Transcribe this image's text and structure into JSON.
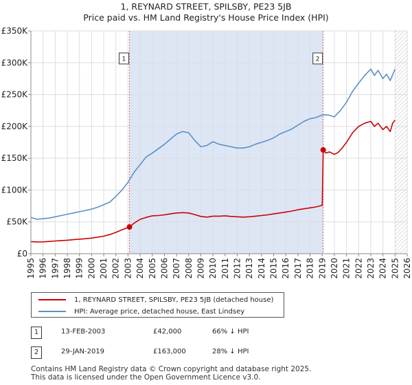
{
  "chart_data": {
    "type": "line",
    "title": "1, REYNARD STREET, SPILSBY, PE23 5JB",
    "subtitle": "Price paid vs. HM Land Registry's House Price Index (HPI)",
    "xlabel": "",
    "ylabel": "",
    "xlim": [
      1995,
      2026
    ],
    "ylim": [
      0,
      350000
    ],
    "x_ticks": [
      "1995",
      "1996",
      "1997",
      "1998",
      "1999",
      "2000",
      "2001",
      "2002",
      "2003",
      "2004",
      "2005",
      "2006",
      "2007",
      "2008",
      "2009",
      "2010",
      "2011",
      "2012",
      "2013",
      "2014",
      "2015",
      "2016",
      "2017",
      "2018",
      "2019",
      "2020",
      "2021",
      "2022",
      "2023",
      "2024",
      "2025",
      "2026"
    ],
    "y_ticks": [
      {
        "value": 0,
        "label": "£0"
      },
      {
        "value": 50000,
        "label": "£50K"
      },
      {
        "value": 100000,
        "label": "£100K"
      },
      {
        "value": 150000,
        "label": "£150K"
      },
      {
        "value": 200000,
        "label": "£200K"
      },
      {
        "value": 250000,
        "label": "£250K"
      },
      {
        "value": 300000,
        "label": "£300K"
      },
      {
        "value": 350000,
        "label": "£350K"
      }
    ],
    "grid": true,
    "shaded_period": [
      2003.12,
      2019.08
    ],
    "future_hatch_from": 2025.0,
    "colors": {
      "property": "#cc0000",
      "hpi": "#5b8fc7",
      "shade": "#dde6f5",
      "grid": "#dddddd",
      "vline": "#e06060"
    },
    "series": [
      {
        "name": "1, REYNARD STREET, SPILSBY, PE23 5JB (detached house)",
        "color": "#cc0000",
        "x": [
          1995.0,
          1995.5,
          1996.0,
          1996.5,
          1997.0,
          1997.5,
          1998.0,
          1998.5,
          1999.0,
          1999.5,
          2000.0,
          2000.5,
          2001.0,
          2001.5,
          2002.0,
          2002.5,
          2003.12,
          2003.5,
          2004.0,
          2004.5,
          2005.0,
          2005.5,
          2006.0,
          2006.5,
          2007.0,
          2007.5,
          2008.0,
          2008.5,
          2009.0,
          2009.5,
          2010.0,
          2010.5,
          2011.0,
          2011.5,
          2012.0,
          2012.5,
          2013.0,
          2013.5,
          2014.0,
          2014.5,
          2015.0,
          2015.5,
          2016.0,
          2016.5,
          2017.0,
          2017.5,
          2018.0,
          2018.5,
          2019.0,
          2019.08,
          2019.3,
          2019.6,
          2020.0,
          2020.3,
          2020.6,
          2021.0,
          2021.5,
          2022.0,
          2022.5,
          2023.0,
          2023.3,
          2023.6,
          2024.0,
          2024.3,
          2024.6,
          2024.8,
          2025.0
        ],
        "values": [
          19000,
          18500,
          18600,
          19200,
          20000,
          20600,
          21200,
          22000,
          22800,
          23500,
          24500,
          26000,
          27500,
          30000,
          33500,
          37500,
          42000,
          48000,
          54000,
          57000,
          59500,
          60000,
          61000,
          62500,
          64000,
          64500,
          64000,
          61500,
          58500,
          57500,
          59000,
          59000,
          59500,
          58500,
          58000,
          57500,
          58000,
          59000,
          60000,
          61000,
          62500,
          64000,
          65500,
          67000,
          69000,
          70500,
          72000,
          73500,
          76000,
          163000,
          158000,
          160000,
          156000,
          159000,
          165000,
          175000,
          190000,
          200000,
          205000,
          208000,
          200000,
          205000,
          195000,
          200000,
          192000,
          205000,
          210000
        ]
      },
      {
        "name": "HPI: Average price, detached house, East Lindsey",
        "color": "#5b8fc7",
        "x": [
          1995.0,
          1995.5,
          1996.0,
          1996.5,
          1997.0,
          1997.5,
          1998.0,
          1998.5,
          1999.0,
          1999.5,
          2000.0,
          2000.5,
          2001.0,
          2001.5,
          2002.0,
          2002.5,
          2003.0,
          2003.5,
          2004.0,
          2004.5,
          2005.0,
          2005.5,
          2006.0,
          2006.5,
          2007.0,
          2007.5,
          2008.0,
          2008.5,
          2009.0,
          2009.5,
          2010.0,
          2010.5,
          2011.0,
          2011.5,
          2012.0,
          2012.5,
          2013.0,
          2013.5,
          2014.0,
          2014.5,
          2015.0,
          2015.5,
          2016.0,
          2016.5,
          2017.0,
          2017.5,
          2018.0,
          2018.5,
          2019.0,
          2019.5,
          2020.0,
          2020.5,
          2021.0,
          2021.5,
          2022.0,
          2022.5,
          2023.0,
          2023.3,
          2023.6,
          2024.0,
          2024.3,
          2024.6,
          2025.0
        ],
        "values": [
          57000,
          54000,
          55000,
          56000,
          58000,
          60000,
          62000,
          64000,
          66000,
          68000,
          70000,
          73000,
          77000,
          81000,
          90000,
          100000,
          112000,
          128000,
          140000,
          152000,
          158000,
          165000,
          172000,
          180000,
          188000,
          192000,
          190000,
          178000,
          168000,
          170000,
          176000,
          172000,
          170000,
          168000,
          166000,
          166000,
          168000,
          172000,
          175000,
          178000,
          182000,
          188000,
          192000,
          196000,
          202000,
          208000,
          212000,
          214000,
          218000,
          218000,
          215000,
          225000,
          238000,
          255000,
          268000,
          280000,
          290000,
          280000,
          288000,
          275000,
          282000,
          272000,
          290000
        ]
      }
    ],
    "sales": [
      {
        "marker": "1",
        "x": 2003.12,
        "value": 42000
      },
      {
        "marker": "2",
        "x": 2019.08,
        "value": 163000
      }
    ]
  },
  "legend": {
    "property_label": "1, REYNARD STREET, SPILSBY, PE23 5JB (detached house)",
    "hpi_label": "HPI: Average price, detached house, East Lindsey"
  },
  "sales_table": [
    {
      "marker": "1",
      "date": "13-FEB-2003",
      "price": "£42,000",
      "hpi_diff": "66% ↓ HPI"
    },
    {
      "marker": "2",
      "date": "29-JAN-2019",
      "price": "£163,000",
      "hpi_diff": "28% ↓ HPI"
    }
  ],
  "footer": {
    "line1": "Contains HM Land Registry data © Crown copyright and database right 2025.",
    "line2": "This data is licensed under the Open Government Licence v3.0."
  }
}
